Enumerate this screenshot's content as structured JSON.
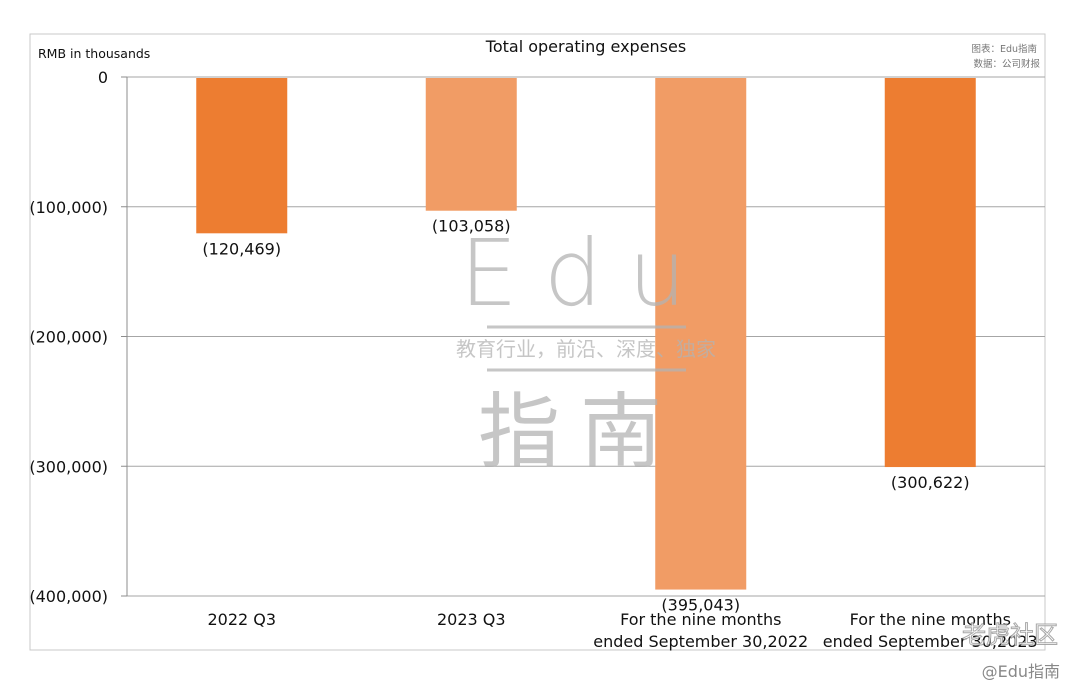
{
  "chart_data": {
    "type": "bar",
    "title": "Total operating expenses",
    "ylabel": "RMB in thousands",
    "categories": [
      "2022 Q3",
      "2023 Q3",
      "For the nine months ended September 30,2022",
      "For the nine months ended September 30,2023"
    ],
    "category_lines": [
      [
        "2022 Q3"
      ],
      [
        "2023 Q3"
      ],
      [
        "For the nine months",
        "ended September 30,2022"
      ],
      [
        "For the nine months",
        "ended September 30,2023"
      ]
    ],
    "values": [
      -120469,
      -103058,
      -395043,
      -300622
    ],
    "value_labels": [
      "(120,469)",
      "(103,058)",
      "(395,043)",
      "(300,622)"
    ],
    "bar_colors": [
      "#ed7d31",
      "#f19c65",
      "#f19c65",
      "#ed7d31"
    ],
    "ylim": [
      -400000,
      0
    ],
    "yticks": [
      0,
      -100000,
      -200000,
      -300000,
      -400000
    ],
    "ytick_labels": [
      "0",
      "(100,000)",
      "(200,000)",
      "(300,000)",
      "(400,000)"
    ],
    "grid": true,
    "legend": "none"
  },
  "source_note": {
    "line1": "图表：Edu指南",
    "line2": "数据：公司财报"
  },
  "watermark": {
    "logo_top": "Edu",
    "tagline": "教育行业，前沿、深度、独家",
    "logo_bottom": "指南",
    "corner_community": "老虎社区",
    "corner_handle": "@Edu指南"
  }
}
